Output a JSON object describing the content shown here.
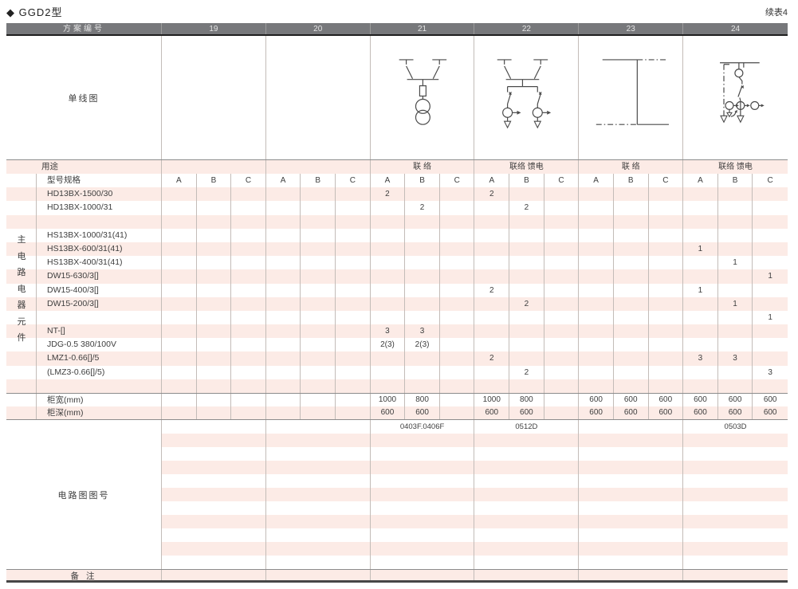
{
  "page": {
    "title": "◆ GGD2型",
    "continuation_note": "续表4"
  },
  "table": {
    "header": {
      "label": "方案编号",
      "schemes": [
        "19",
        "20",
        "21",
        "22",
        "23",
        "24"
      ]
    },
    "diagram_label": "单线图",
    "diagrams": {
      "scheme21": "two-disconnectors-fuse-voltage-transformer",
      "scheme22": "two-disconnectors-two-feeders-with-cts",
      "scheme23": "busbar-link",
      "scheme24": "feeder-with-meter-and-current-transformers"
    },
    "usage": {
      "label": "用途",
      "values": [
        "",
        "",
        "联 络",
        "联络 馈电",
        "联 络",
        "联络 馈电"
      ]
    },
    "spec": {
      "label": "型号规格",
      "subcols": [
        "A",
        "B",
        "C"
      ]
    },
    "group_label": "主电路电器元件",
    "components": [
      {
        "label": "HD13BX-1500/30",
        "cells": [
          "",
          "",
          "",
          "",
          "",
          "",
          "2",
          "",
          "",
          "2",
          "",
          "",
          "",
          "",
          "",
          "",
          "",
          ""
        ]
      },
      {
        "label": "HD13BX-1000/31",
        "cells": [
          "",
          "",
          "",
          "",
          "",
          "",
          "",
          "2",
          "",
          "",
          "2",
          "",
          "",
          "",
          "",
          "",
          "",
          ""
        ]
      },
      {
        "label": "",
        "cells": [
          "",
          "",
          "",
          "",
          "",
          "",
          "",
          "",
          "",
          "",
          "",
          "",
          "",
          "",
          "",
          "",
          "",
          ""
        ]
      },
      {
        "label": "HS13BX-1000/31(41)",
        "cells": [
          "",
          "",
          "",
          "",
          "",
          "",
          "",
          "",
          "",
          "",
          "",
          "",
          "",
          "",
          "",
          "",
          "",
          ""
        ]
      },
      {
        "label": "HS13BX-600/31(41)",
        "cells": [
          "",
          "",
          "",
          "",
          "",
          "",
          "",
          "",
          "",
          "",
          "",
          "",
          "",
          "",
          "",
          "1",
          "",
          ""
        ]
      },
      {
        "label": "HS13BX-400/31(41)",
        "cells": [
          "",
          "",
          "",
          "",
          "",
          "",
          "",
          "",
          "",
          "",
          "",
          "",
          "",
          "",
          "",
          "",
          "1",
          ""
        ]
      },
      {
        "label": "DW15-630/3[]",
        "cells": [
          "",
          "",
          "",
          "",
          "",
          "",
          "",
          "",
          "",
          "",
          "",
          "",
          "",
          "",
          "",
          "",
          "",
          "1"
        ]
      },
      {
        "label": "DW15-400/3[]",
        "cells": [
          "",
          "",
          "",
          "",
          "",
          "",
          "",
          "",
          "",
          "2",
          "",
          "",
          "",
          "",
          "",
          "1",
          "",
          ""
        ]
      },
      {
        "label": "DW15-200/3[]",
        "cells": [
          "",
          "",
          "",
          "",
          "",
          "",
          "",
          "",
          "",
          "",
          "2",
          "",
          "",
          "",
          "",
          "",
          "1",
          ""
        ]
      },
      {
        "label": "",
        "cells": [
          "",
          "",
          "",
          "",
          "",
          "",
          "",
          "",
          "",
          "",
          "",
          "",
          "",
          "",
          "",
          "",
          "",
          "1"
        ]
      },
      {
        "label": "NT-[]",
        "cells": [
          "",
          "",
          "",
          "",
          "",
          "",
          "3",
          "3",
          "",
          "",
          "",
          "",
          "",
          "",
          "",
          "",
          "",
          ""
        ]
      },
      {
        "label": "JDG-0.5 380/100V",
        "cells": [
          "",
          "",
          "",
          "",
          "",
          "",
          "2(3)",
          "2(3)",
          "",
          "",
          "",
          "",
          "",
          "",
          "",
          "",
          "",
          ""
        ]
      },
      {
        "label": "LMZ1-0.66[]/5",
        "cells": [
          "",
          "",
          "",
          "",
          "",
          "",
          "",
          "",
          "",
          "2",
          "",
          "",
          "",
          "",
          "",
          "3",
          "3",
          ""
        ]
      },
      {
        "label": "(LMZ3-0.66[]/5)",
        "cells": [
          "",
          "",
          "",
          "",
          "",
          "",
          "",
          "",
          "",
          "",
          "2",
          "",
          "",
          "",
          "",
          "",
          "",
          "3"
        ]
      },
      {
        "label": "",
        "cells": [
          "",
          "",
          "",
          "",
          "",
          "",
          "",
          "",
          "",
          "",
          "",
          "",
          "",
          "",
          "",
          "",
          "",
          ""
        ]
      }
    ],
    "dims": [
      {
        "label": "柜宽(mm)",
        "cells": [
          "",
          "",
          "",
          "",
          "",
          "",
          "1000",
          "800",
          "",
          "1000",
          "800",
          "",
          "600",
          "600",
          "600",
          "600",
          "600",
          "600"
        ]
      },
      {
        "label": "柜深(mm)",
        "cells": [
          "",
          "",
          "",
          "",
          "",
          "",
          "600",
          "600",
          "",
          "600",
          "600",
          "",
          "600",
          "600",
          "600",
          "600",
          "600",
          "600"
        ]
      }
    ],
    "figure_section": {
      "label": "电路图图号",
      "rows": [
        [
          "",
          "",
          "0403F.0406F",
          "0512D",
          "",
          "0503D"
        ],
        [
          "",
          "",
          "",
          "",
          "",
          ""
        ],
        [
          "",
          "",
          "",
          "",
          "",
          ""
        ],
        [
          "",
          "",
          "",
          "",
          "",
          ""
        ],
        [
          "",
          "",
          "",
          "",
          "",
          ""
        ],
        [
          "",
          "",
          "",
          "",
          "",
          ""
        ],
        [
          "",
          "",
          "",
          "",
          "",
          ""
        ],
        [
          "",
          "",
          "",
          "",
          "",
          ""
        ],
        [
          "",
          "",
          "",
          "",
          "",
          ""
        ],
        [
          "",
          "",
          "",
          "",
          "",
          ""
        ],
        [
          "",
          "",
          "",
          "",
          "",
          ""
        ]
      ]
    },
    "remark": {
      "label": "备 注",
      "values": [
        "",
        "",
        "",
        "",
        "",
        ""
      ]
    }
  }
}
